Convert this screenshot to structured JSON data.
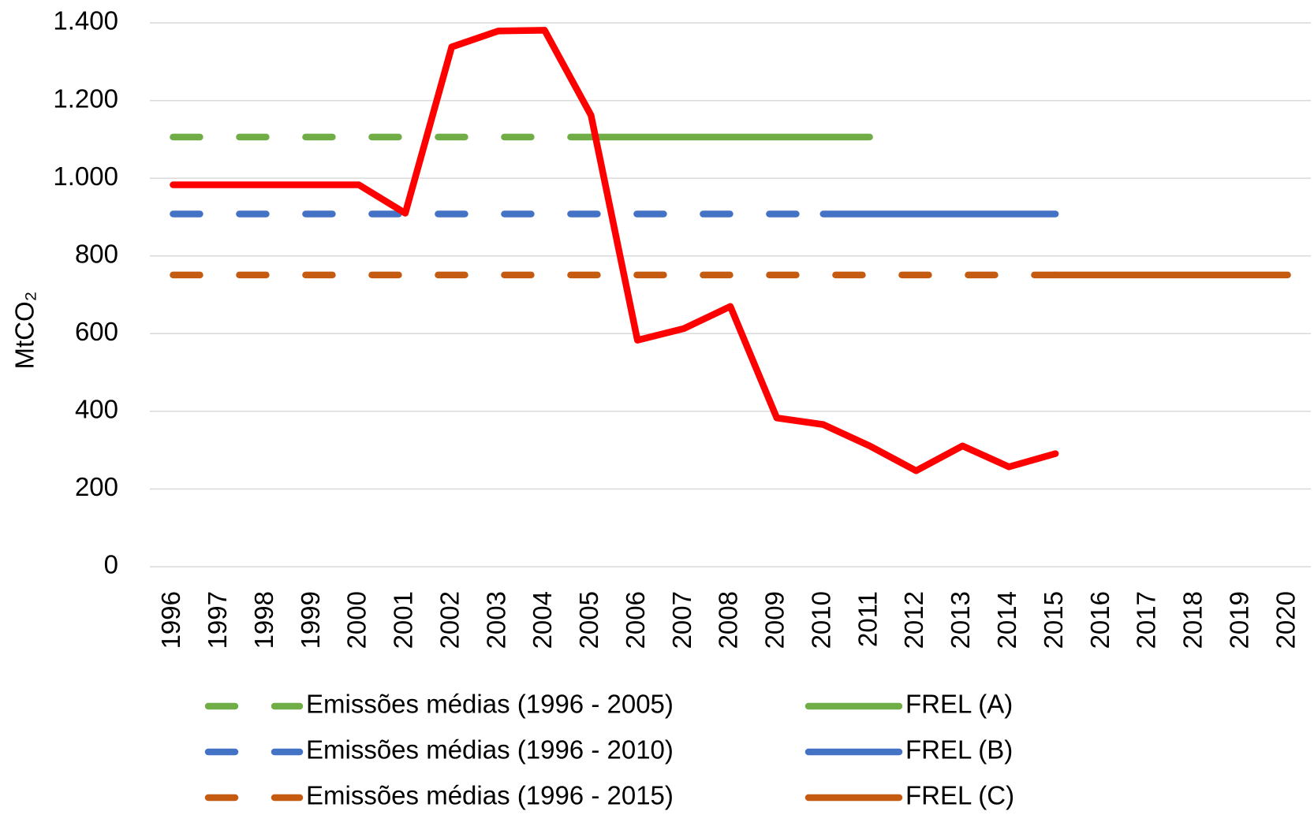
{
  "chart_data": {
    "type": "line",
    "y_label": "MtCO₂",
    "categories": [
      "1996",
      "1997",
      "1998",
      "1999",
      "2000",
      "2001",
      "2002",
      "2003",
      "2004",
      "2005",
      "2006",
      "2007",
      "2008",
      "2009",
      "2010",
      "2011",
      "2012",
      "2013",
      "2014",
      "2015",
      "2016",
      "2017",
      "2018",
      "2019",
      "2020"
    ],
    "series": [
      {
        "name": "Emissões médias (1996 - 2005)",
        "color": "#70ad47",
        "style": "dashed",
        "values": [
          1106,
          1106,
          1106,
          1106,
          1106,
          1106,
          1106,
          1106,
          1106,
          1106,
          null,
          null,
          null,
          null,
          null,
          null,
          null,
          null,
          null,
          null,
          null,
          null,
          null,
          null,
          null
        ]
      },
      {
        "name": "FREL (A)",
        "color": "#70ad47",
        "style": "solid",
        "values": [
          null,
          null,
          null,
          null,
          null,
          null,
          null,
          null,
          null,
          1106,
          1106,
          1106,
          1106,
          1106,
          1106,
          1106,
          null,
          null,
          null,
          null,
          null,
          null,
          null,
          null,
          null
        ]
      },
      {
        "name": "Emissões médias  (1996 - 2010)",
        "color": "#4472c4",
        "style": "dashed",
        "values": [
          908,
          908,
          908,
          908,
          908,
          908,
          908,
          908,
          908,
          908,
          908,
          908,
          908,
          908,
          908,
          null,
          null,
          null,
          null,
          null,
          null,
          null,
          null,
          null,
          null
        ]
      },
      {
        "name": "FREL (B)",
        "color": "#4472c4",
        "style": "solid",
        "values": [
          null,
          null,
          null,
          null,
          null,
          null,
          null,
          null,
          null,
          null,
          null,
          null,
          null,
          null,
          908,
          908,
          908,
          908,
          908,
          908,
          null,
          null,
          null,
          null,
          null
        ]
      },
      {
        "name": "Emissões médias  (1996 - 2015)",
        "color": "#c55a11",
        "style": "dashed",
        "values": [
          751,
          751,
          751,
          751,
          751,
          751,
          751,
          751,
          751,
          751,
          751,
          751,
          751,
          751,
          751,
          751,
          751,
          751,
          751,
          751,
          null,
          null,
          null,
          null,
          null
        ]
      },
      {
        "name": "FREL (C)",
        "color": "#c55a11",
        "style": "solid",
        "values": [
          null,
          null,
          null,
          null,
          null,
          null,
          null,
          null,
          null,
          null,
          null,
          null,
          null,
          null,
          null,
          null,
          null,
          null,
          null,
          751,
          751,
          751,
          751,
          751,
          751
        ]
      },
      {
        "color": "#ff0000",
        "style": "solid",
        "values": [
          983,
          983,
          983,
          983,
          983,
          910,
          1338,
          1379,
          1381,
          1162,
          583,
          613,
          670,
          383,
          366,
          311,
          247,
          311,
          257,
          291,
          null,
          null,
          null,
          null,
          null
        ]
      }
    ],
    "ylim": [
      0,
      1400
    ],
    "yticks": [
      0,
      200,
      400,
      600,
      800,
      {
        "value": 1000,
        "label": "1.000"
      },
      {
        "value": 1200,
        "label": "1.200"
      },
      {
        "value": 1400,
        "label": "1.400"
      }
    ],
    "grid": true,
    "legend": "bottom"
  }
}
